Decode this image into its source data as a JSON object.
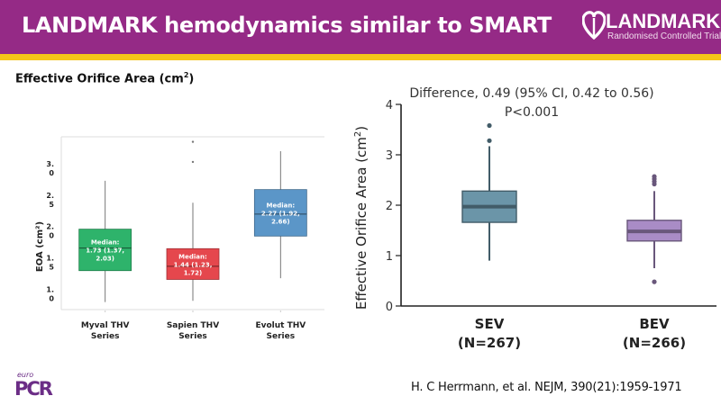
{
  "header": {
    "title": "LANDMARK hemodynamics similar to SMART",
    "logo_name": "LANDMARK",
    "logo_subtitle": "Randomised Controlled Trial",
    "logo_icon": "heart-icon"
  },
  "colors": {
    "header_bg": "#952a86",
    "accent_bar": "#f5c518",
    "myval": "#2eb36b",
    "sapien": "#e5474d",
    "evolut": "#5b96c8",
    "sev": "#6b95a8",
    "bev": "#a98cc6"
  },
  "section_title": "Effective Orifice Area (cm",
  "section_title_sup": "2",
  "section_title_end": ")",
  "chart_data": [
    {
      "type": "box",
      "title": "",
      "ylabel": "EOA (cm²)",
      "xlabel": "",
      "ylim": [
        0.75,
        3.5
      ],
      "y_ticks": [
        1.0,
        1.5,
        2.0,
        2.5,
        3.0
      ],
      "y_tick_labels": [
        [
          "1.",
          "0"
        ],
        [
          "1.",
          "5"
        ],
        [
          "2.",
          "0"
        ],
        [
          "2.",
          "5"
        ],
        [
          "3.",
          "0"
        ]
      ],
      "grid": false,
      "series": [
        {
          "name": "Myval THV Series",
          "label_lines": [
            "Myval THV",
            "Series"
          ],
          "median": 1.73,
          "q1": 1.37,
          "q3": 2.03,
          "whisker_low": 0.87,
          "whisker_high": 2.8,
          "outliers": [],
          "annotation": [
            "Median:",
            "1.73 (1.37,",
            "2.03)"
          ],
          "color": "#2eb36b"
        },
        {
          "name": "Sapien THV Series",
          "label_lines": [
            "Sapien THV",
            "Series"
          ],
          "median": 1.44,
          "q1": 1.23,
          "q3": 1.72,
          "whisker_low": 0.89,
          "whisker_high": 2.45,
          "outliers": [
            3.1,
            3.42
          ],
          "annotation": [
            "Median:",
            "1.44 (1.23,",
            "1.72)"
          ],
          "color": "#e5474d"
        },
        {
          "name": "Evolut THV Series",
          "label_lines": [
            "Evolut THV",
            "Series"
          ],
          "median": 2.27,
          "q1": 1.92,
          "q3": 2.66,
          "whisker_low": 1.25,
          "whisker_high": 3.27,
          "outliers": [],
          "annotation": [
            "Median:",
            "2.27 (1.92,",
            "2.66)"
          ],
          "color": "#5b96c8"
        }
      ]
    },
    {
      "type": "box",
      "title": "Difference, 0.49 (95% CI, 0.42 to 0.56)",
      "subtitle": "P<0.001",
      "ylabel": "Effective Orifice Area (cm²)",
      "ylabel_main": "Effective Orifice Area (cm",
      "ylabel_sup": "2",
      "ylabel_end": ")",
      "xlabel": "",
      "ylim": [
        0,
        4
      ],
      "y_ticks": [
        0,
        1,
        2,
        3,
        4
      ],
      "y_tick_labels": [
        "0",
        "1",
        "2",
        "3",
        "4"
      ],
      "grid": false,
      "series": [
        {
          "name": "SEV",
          "label_lines": [
            "SEV",
            "(N=267)"
          ],
          "median": 1.97,
          "q1": 1.66,
          "q3": 2.28,
          "whisker_low": 0.9,
          "whisker_high": 3.17,
          "outliers": [
            3.28,
            3.58
          ],
          "color": "#6b95a8"
        },
        {
          "name": "BEV",
          "label_lines": [
            "BEV",
            "(N=266)"
          ],
          "median": 1.48,
          "q1": 1.29,
          "q3": 1.7,
          "whisker_low": 0.75,
          "whisker_high": 2.28,
          "outliers": [
            0.48,
            2.42,
            2.47,
            2.52,
            2.57
          ],
          "color": "#a98cc6"
        }
      ]
    }
  ],
  "citation": "H. C Herrmann, et al. NEJM, 390(21):1959-1971",
  "footer_logo": {
    "small": "euro",
    "big": "PCR"
  }
}
